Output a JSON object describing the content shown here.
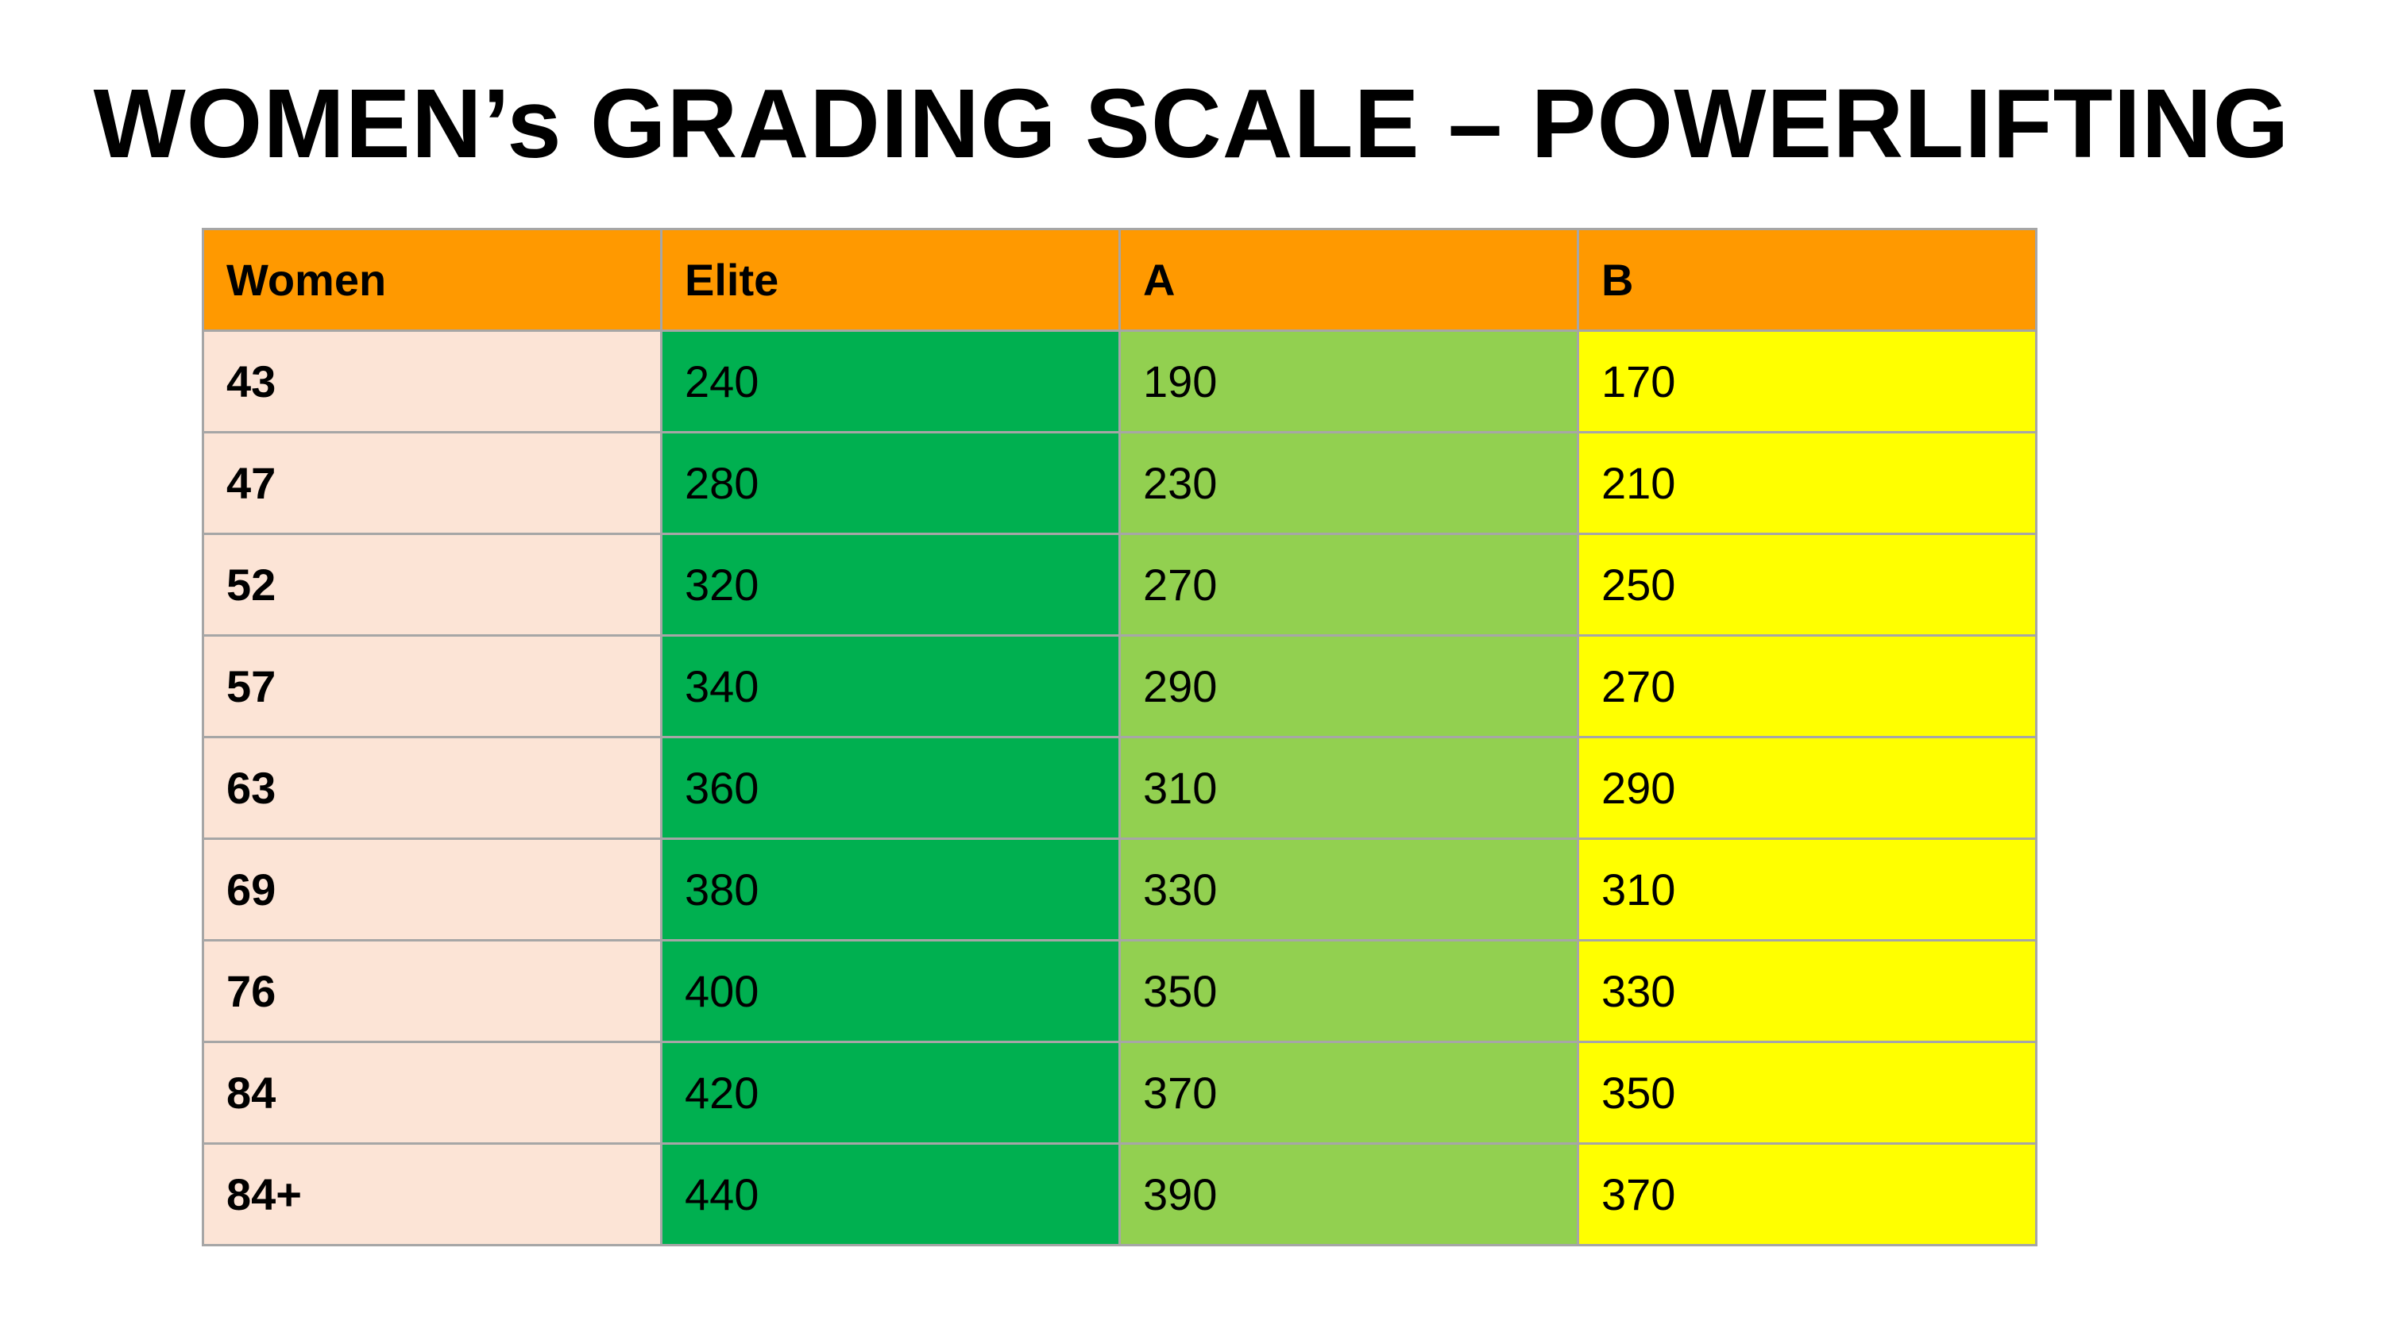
{
  "title": "WOMEN’s GRADING SCALE – POWERLIFTING",
  "colors": {
    "header": "#ff9900",
    "category": "#fce4d6",
    "elite": "#00b050",
    "a": "#92d050",
    "b": "#ffff00",
    "border": "#a6a6a6"
  },
  "table": {
    "headers": [
      "Women",
      "Elite",
      "A",
      "B"
    ],
    "rows": [
      [
        "43",
        "240",
        "190",
        "170"
      ],
      [
        "47",
        "280",
        "230",
        "210"
      ],
      [
        "52",
        "320",
        "270",
        "250"
      ],
      [
        "57",
        "340",
        "290",
        "270"
      ],
      [
        "63",
        "360",
        "310",
        "290"
      ],
      [
        "69",
        "380",
        "330",
        "310"
      ],
      [
        "76",
        "400",
        "350",
        "330"
      ],
      [
        "84",
        "420",
        "370",
        "350"
      ],
      [
        "84+",
        "440",
        "390",
        "370"
      ]
    ]
  }
}
